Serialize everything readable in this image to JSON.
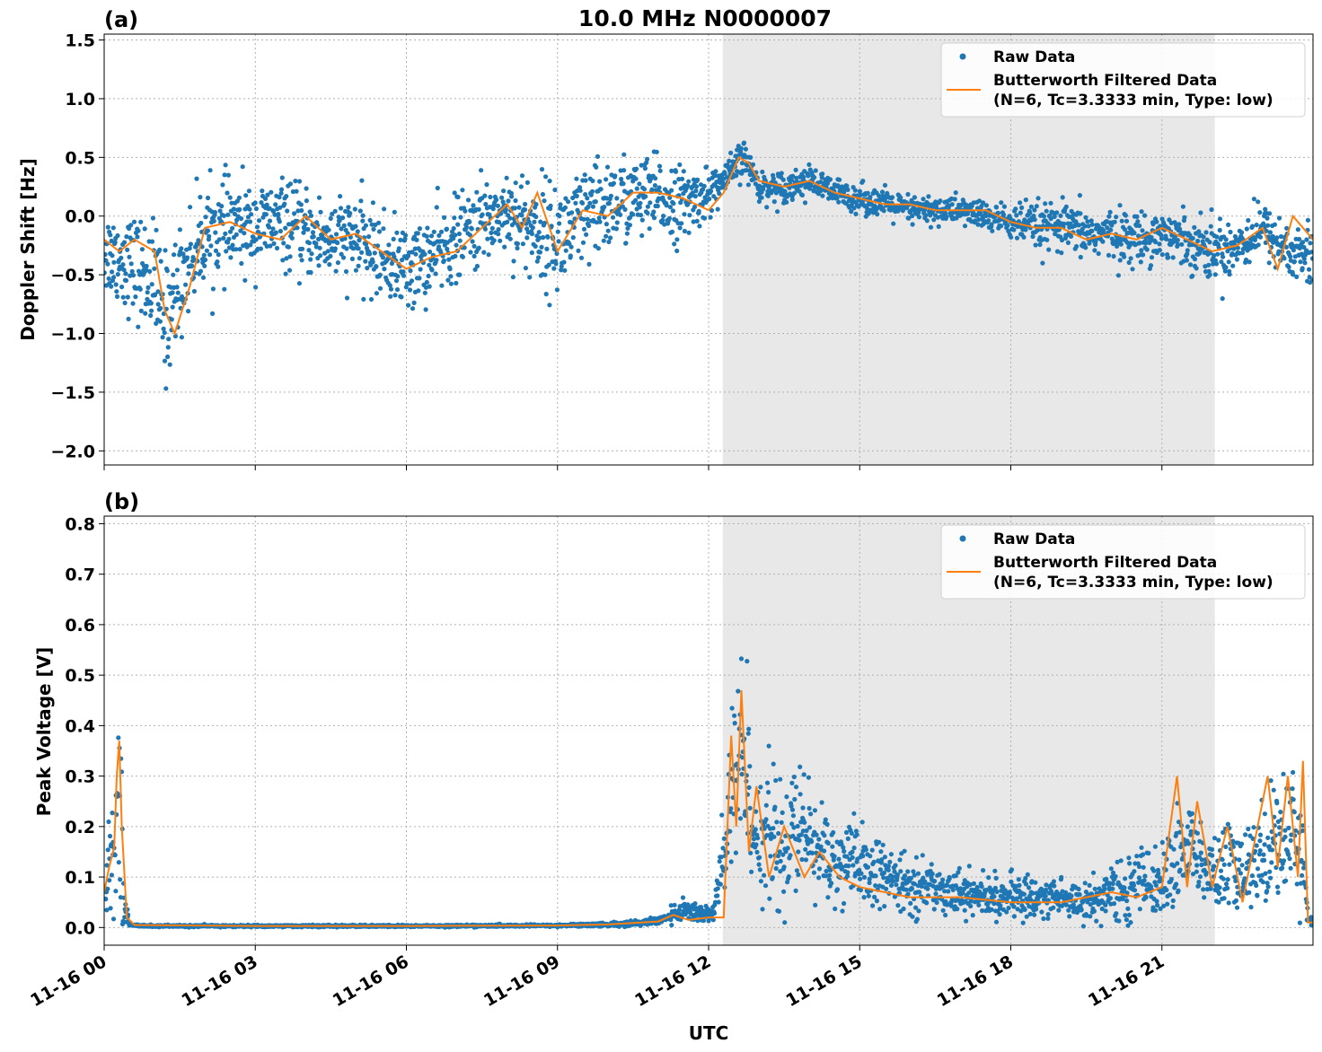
{
  "figure": {
    "title": "10.0 MHz N0000007",
    "xlabel": "UTC",
    "colors": {
      "raw": "#1f77b4",
      "filtered": "#ff7f0e",
      "shade": "#e8e8e8",
      "grid": "#b0b0b0"
    }
  },
  "chart_data": [
    {
      "type": "scatter",
      "panel": "(a)",
      "ylabel": "Doppler Shift [Hz]",
      "x_unit": "hours since 11-16 00 UTC",
      "xlim": [
        0,
        24
      ],
      "ylim": [
        -2.12,
        1.55
      ],
      "yticks": [
        -2.0,
        -1.5,
        -1.0,
        -0.5,
        0.0,
        0.5,
        1.0,
        1.5
      ],
      "ytick_labels": [
        "−2.0",
        "−1.5",
        "−1.0",
        "−0.5",
        "0.0",
        "0.5",
        "1.0",
        "1.5"
      ],
      "xticks": [
        0,
        3,
        6,
        9,
        12,
        15,
        18,
        21
      ],
      "grid": true,
      "legend_position": "top-right",
      "shaded_span": [
        12.28,
        22.05
      ],
      "series": [
        {
          "name": "Raw Data",
          "style": "points",
          "x": [
            0,
            0.5,
            1.0,
            1.2,
            1.5,
            2.0,
            2.5,
            3.0,
            3.5,
            4.0,
            4.5,
            5.0,
            5.5,
            6.0,
            6.5,
            7.0,
            7.5,
            8.0,
            8.5,
            9.0,
            9.5,
            10.0,
            10.5,
            11.0,
            11.5,
            12.0,
            12.3,
            12.7,
            13.0,
            13.5,
            14.0,
            14.5,
            15.0,
            15.5,
            16.0,
            16.5,
            17.0,
            17.5,
            18.0,
            18.5,
            19.0,
            19.5,
            20.0,
            20.5,
            21.0,
            21.5,
            22.0,
            22.5,
            23.0,
            23.5,
            24.0
          ],
          "y_center": [
            -0.3,
            -0.4,
            -0.55,
            -0.9,
            -0.55,
            -0.15,
            -0.1,
            -0.1,
            -0.05,
            -0.15,
            -0.2,
            -0.2,
            -0.35,
            -0.45,
            -0.35,
            -0.2,
            -0.05,
            0.05,
            -0.1,
            -0.2,
            -0.05,
            0.1,
            0.15,
            0.15,
            0.1,
            0.2,
            0.3,
            0.5,
            0.25,
            0.25,
            0.3,
            0.2,
            0.15,
            0.1,
            0.05,
            0.05,
            0.05,
            0.0,
            -0.05,
            -0.1,
            -0.1,
            -0.15,
            -0.15,
            -0.2,
            -0.15,
            -0.2,
            -0.3,
            -0.25,
            -0.1,
            -0.3,
            -0.35
          ],
          "y_spread": [
            0.35,
            0.4,
            0.5,
            0.55,
            0.45,
            0.4,
            0.4,
            0.35,
            0.35,
            0.35,
            0.35,
            0.35,
            0.35,
            0.35,
            0.35,
            0.35,
            0.35,
            0.35,
            0.45,
            0.45,
            0.45,
            0.4,
            0.35,
            0.35,
            0.3,
            0.2,
            0.15,
            0.15,
            0.12,
            0.13,
            0.12,
            0.12,
            0.12,
            0.12,
            0.12,
            0.12,
            0.12,
            0.12,
            0.15,
            0.2,
            0.2,
            0.2,
            0.2,
            0.22,
            0.2,
            0.22,
            0.25,
            0.25,
            0.2,
            0.25,
            0.3
          ]
        },
        {
          "name": "Butterworth Filtered Data\n(N=6, Tc=3.3333 min, Type: low)",
          "style": "line",
          "x": [
            0,
            0.3,
            0.6,
            1.0,
            1.2,
            1.4,
            1.7,
            2.0,
            2.5,
            3.0,
            3.5,
            4.0,
            4.5,
            5.0,
            5.5,
            6.0,
            6.5,
            7.0,
            7.5,
            8.0,
            8.3,
            8.6,
            9.0,
            9.5,
            10.0,
            10.5,
            11.0,
            11.5,
            12.0,
            12.3,
            12.6,
            12.8,
            13.0,
            13.5,
            14.0,
            14.5,
            15.0,
            15.5,
            16.0,
            16.5,
            17.0,
            17.5,
            18.0,
            18.5,
            19.0,
            19.5,
            20.0,
            20.5,
            21.0,
            21.5,
            22.0,
            22.5,
            23.0,
            23.3,
            23.6,
            24.0
          ],
          "y": [
            -0.2,
            -0.3,
            -0.2,
            -0.3,
            -0.8,
            -1.0,
            -0.6,
            -0.1,
            -0.05,
            -0.15,
            -0.2,
            0.0,
            -0.2,
            -0.15,
            -0.3,
            -0.45,
            -0.35,
            -0.3,
            -0.1,
            0.1,
            -0.1,
            0.2,
            -0.3,
            0.05,
            0.0,
            0.2,
            0.2,
            0.15,
            0.05,
            0.2,
            0.5,
            0.45,
            0.3,
            0.25,
            0.3,
            0.2,
            0.15,
            0.1,
            0.1,
            0.05,
            0.05,
            0.05,
            -0.05,
            -0.1,
            -0.1,
            -0.2,
            -0.15,
            -0.2,
            -0.1,
            -0.2,
            -0.3,
            -0.25,
            -0.1,
            -0.45,
            0.0,
            -0.2
          ]
        }
      ]
    },
    {
      "type": "scatter",
      "panel": "(b)",
      "ylabel": "Peak Voltage [V]",
      "x_unit": "hours since 11-16 00 UTC",
      "xlim": [
        0,
        24
      ],
      "ylim": [
        -0.035,
        0.815
      ],
      "yticks": [
        0.0,
        0.1,
        0.2,
        0.3,
        0.4,
        0.5,
        0.6,
        0.7,
        0.8
      ],
      "ytick_labels": [
        "0.0",
        "0.1",
        "0.2",
        "0.3",
        "0.4",
        "0.5",
        "0.6",
        "0.7",
        "0.8"
      ],
      "xticks": [
        0,
        3,
        6,
        9,
        12,
        15,
        18,
        21
      ],
      "xtick_labels": [
        "11-16 00",
        "11-16 03",
        "11-16 06",
        "11-16 09",
        "11-16 12",
        "11-16 15",
        "11-16 18",
        "11-16 21"
      ],
      "grid": true,
      "legend_position": "top-right",
      "shaded_span": [
        12.28,
        22.05
      ],
      "series": [
        {
          "name": "Raw Data",
          "style": "points",
          "x": [
            0,
            0.1,
            0.2,
            0.3,
            0.4,
            0.5,
            1.0,
            3.0,
            6.0,
            9.0,
            10.0,
            10.8,
            11.2,
            11.5,
            11.8,
            12.1,
            12.4,
            12.55,
            12.7,
            12.9,
            13.2,
            13.5,
            13.8,
            14.0,
            14.5,
            15.0,
            15.5,
            16.0,
            16.5,
            17.0,
            17.5,
            18.0,
            18.5,
            19.0,
            19.5,
            20.0,
            20.3,
            20.6,
            21.0,
            21.3,
            21.6,
            22.0,
            22.3,
            22.6,
            23.0,
            23.3,
            23.6,
            23.8,
            23.9,
            24.0
          ],
          "y_center": [
            0.05,
            0.12,
            0.15,
            0.3,
            0.05,
            0.005,
            0.003,
            0.003,
            0.003,
            0.004,
            0.006,
            0.01,
            0.02,
            0.035,
            0.03,
            0.025,
            0.2,
            0.3,
            0.35,
            0.2,
            0.18,
            0.15,
            0.2,
            0.17,
            0.13,
            0.12,
            0.1,
            0.08,
            0.08,
            0.07,
            0.06,
            0.06,
            0.06,
            0.06,
            0.05,
            0.07,
            0.07,
            0.1,
            0.08,
            0.15,
            0.15,
            0.1,
            0.12,
            0.1,
            0.15,
            0.18,
            0.2,
            0.15,
            0.02,
            0.01
          ],
          "y_spread": [
            0.03,
            0.08,
            0.1,
            0.25,
            0.03,
            0.002,
            0.002,
            0.002,
            0.002,
            0.002,
            0.004,
            0.006,
            0.01,
            0.025,
            0.02,
            0.02,
            0.15,
            0.25,
            0.2,
            0.15,
            0.12,
            0.12,
            0.12,
            0.12,
            0.08,
            0.08,
            0.06,
            0.05,
            0.05,
            0.04,
            0.04,
            0.04,
            0.04,
            0.04,
            0.04,
            0.05,
            0.06,
            0.06,
            0.06,
            0.1,
            0.1,
            0.06,
            0.1,
            0.08,
            0.1,
            0.12,
            0.12,
            0.1,
            0.01,
            0.005
          ]
        },
        {
          "name": "Butterworth Filtered Data\n(N=6, Tc=3.3333 min, Type: low)",
          "style": "line",
          "x": [
            0,
            0.1,
            0.2,
            0.25,
            0.3,
            0.35,
            0.45,
            0.6,
            3.0,
            6.0,
            9.0,
            10.0,
            11.0,
            11.3,
            11.6,
            12.0,
            12.3,
            12.45,
            12.55,
            12.65,
            12.8,
            12.95,
            13.2,
            13.5,
            13.9,
            14.2,
            14.6,
            15.0,
            15.5,
            16.0,
            17.0,
            18.0,
            19.0,
            20.0,
            20.5,
            21.0,
            21.3,
            21.5,
            21.7,
            22.0,
            22.3,
            22.6,
            22.9,
            23.1,
            23.3,
            23.5,
            23.7,
            23.8,
            23.9,
            24.0
          ],
          "y": [
            0.07,
            0.12,
            0.16,
            0.3,
            0.37,
            0.2,
            0.02,
            0.005,
            0.003,
            0.003,
            0.004,
            0.006,
            0.012,
            0.025,
            0.015,
            0.02,
            0.02,
            0.38,
            0.2,
            0.47,
            0.15,
            0.28,
            0.1,
            0.2,
            0.1,
            0.15,
            0.1,
            0.08,
            0.07,
            0.06,
            0.06,
            0.05,
            0.05,
            0.07,
            0.06,
            0.08,
            0.3,
            0.08,
            0.25,
            0.08,
            0.2,
            0.05,
            0.2,
            0.3,
            0.12,
            0.3,
            0.1,
            0.33,
            0.01,
            0.01
          ]
        }
      ]
    }
  ]
}
